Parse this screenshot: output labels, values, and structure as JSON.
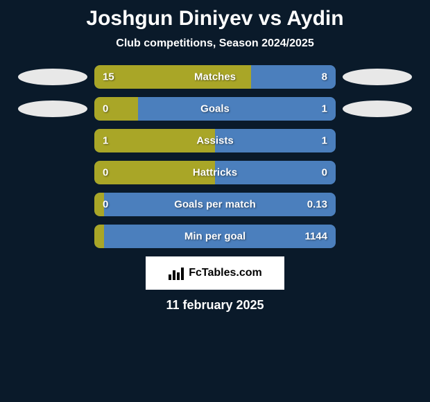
{
  "background_color": "#0a1a2a",
  "title": "Joshgun Diniyev vs Aydin",
  "subtitle": "Club competitions, Season 2024/2025",
  "left_color": "#a9a627",
  "right_color": "#4b7fbd",
  "avatar_color": "#e8e8e8",
  "bar_bg": "#3a5a7a",
  "font_title_size": 30,
  "font_subtitle_size": 16,
  "font_stat_size": 15,
  "avatars": {
    "show_row1": true,
    "show_row2": true
  },
  "stats": [
    {
      "name": "Matches",
      "left_value": "15",
      "right_value": "8",
      "left_pct": 65,
      "right_pct": 35
    },
    {
      "name": "Goals",
      "left_value": "0",
      "right_value": "1",
      "left_pct": 18,
      "right_pct": 82
    },
    {
      "name": "Assists",
      "left_value": "1",
      "right_value": "1",
      "left_pct": 50,
      "right_pct": 50
    },
    {
      "name": "Hattricks",
      "left_value": "0",
      "right_value": "0",
      "left_pct": 50,
      "right_pct": 50
    },
    {
      "name": "Goals per match",
      "left_value": "0",
      "right_value": "0.13",
      "left_pct": 4,
      "right_pct": 96
    },
    {
      "name": "Min per goal",
      "left_value": "",
      "right_value": "1144",
      "left_pct": 4,
      "right_pct": 96
    }
  ],
  "logo_text": "FcTables.com",
  "date": "11 february 2025"
}
